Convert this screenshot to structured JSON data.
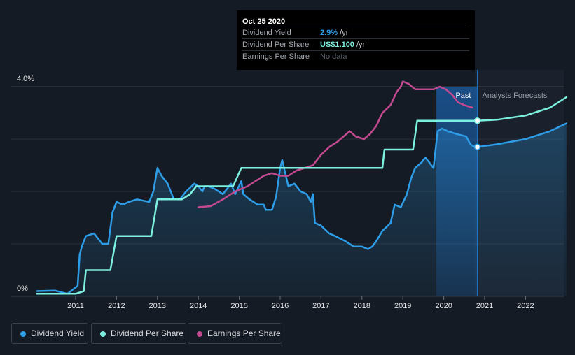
{
  "tooltip": {
    "date": "Oct 25 2020",
    "rows": [
      {
        "label": "Dividend Yield",
        "value": "2.9%",
        "unit": " /yr"
      },
      {
        "label": "Dividend Per Share",
        "value": "US$1.100",
        "unit": " /yr"
      },
      {
        "label": "Earnings Per Share",
        "value": "No data",
        "unit": ""
      }
    ]
  },
  "legend": [
    {
      "label": "Dividend Yield",
      "color": "#2e9de8"
    },
    {
      "label": "Dividend Per Share",
      "color": "#7cf0de"
    },
    {
      "label": "Earnings Per Share",
      "color": "#c2498f"
    }
  ],
  "chart_data": {
    "type": "line",
    "y_tick_labels": [
      "4.0%",
      "0%"
    ],
    "ylim": [
      0,
      4.0
    ],
    "xlim": [
      2010.0,
      2023.0
    ],
    "x_tick_labels": [
      "2011",
      "2012",
      "2013",
      "2014",
      "2015",
      "2016",
      "2017",
      "2018",
      "2019",
      "2020",
      "2021",
      "2022"
    ],
    "past_label": "Past",
    "forecast_label": "Analysts Forecasts",
    "forecast_start": 2020.82,
    "past_band_start": 2019.82,
    "grid": true,
    "colors": {
      "yield": "#2e9de8",
      "dps": "#7cf0de",
      "eps": "#c2498f"
    },
    "series": [
      {
        "name": "Dividend Yield",
        "key": "yield",
        "area": true,
        "x": [
          2010.05,
          2010.5,
          2010.8,
          2011.05,
          2011.1,
          2011.15,
          2011.25,
          2011.45,
          2011.65,
          2011.8,
          2011.9,
          2012.0,
          2012.15,
          2012.3,
          2012.5,
          2012.8,
          2012.9,
          2013.0,
          2013.1,
          2013.25,
          2013.4,
          2013.55,
          2013.7,
          2013.9,
          2014.0,
          2014.1,
          2014.15,
          2014.25,
          2014.4,
          2014.6,
          2014.8,
          2014.9,
          2015.05,
          2015.1,
          2015.25,
          2015.45,
          2015.6,
          2015.65,
          2015.8,
          2015.9,
          2016.0,
          2016.05,
          2016.2,
          2016.35,
          2016.5,
          2016.65,
          2016.75,
          2016.8,
          2016.85,
          2017.0,
          2017.2,
          2017.35,
          2017.6,
          2017.8,
          2018.0,
          2018.15,
          2018.25,
          2018.35,
          2018.5,
          2018.7,
          2018.8,
          2018.95,
          2019.1,
          2019.2,
          2019.3,
          2019.45,
          2019.55,
          2019.6,
          2019.75,
          2019.85,
          2019.95,
          2020.1,
          2020.3,
          2020.55,
          2020.65,
          2020.75,
          2020.82,
          2021.3,
          2022.0,
          2022.6,
          2023.0
        ],
        "y": [
          0.1,
          0.11,
          0.05,
          0.2,
          0.8,
          0.95,
          1.15,
          1.2,
          1.0,
          1.0,
          1.6,
          1.8,
          1.75,
          1.8,
          1.85,
          1.8,
          2.0,
          2.45,
          2.3,
          2.15,
          1.85,
          1.85,
          2.0,
          2.15,
          2.1,
          2.0,
          2.1,
          2.1,
          2.05,
          1.95,
          2.15,
          1.95,
          2.2,
          1.95,
          1.85,
          1.75,
          1.75,
          1.65,
          1.65,
          1.9,
          2.45,
          2.6,
          2.1,
          2.15,
          2.0,
          1.95,
          1.8,
          1.95,
          1.4,
          1.35,
          1.2,
          1.15,
          1.05,
          0.95,
          0.95,
          0.9,
          0.95,
          1.05,
          1.25,
          1.4,
          1.75,
          1.7,
          1.95,
          2.25,
          2.45,
          2.55,
          2.65,
          2.6,
          2.45,
          3.15,
          3.2,
          3.15,
          3.1,
          3.05,
          2.9,
          2.85,
          2.85,
          2.9,
          3.0,
          3.15,
          3.3
        ]
      },
      {
        "name": "Dividend Per Share",
        "key": "dps",
        "area": false,
        "x": [
          2010.05,
          2011.0,
          2011.2,
          2011.25,
          2011.85,
          2012.0,
          2012.85,
          2013.0,
          2013.6,
          2013.8,
          2013.95,
          2014.0,
          2014.85,
          2015.05,
          2016.0,
          2016.85,
          2017.05,
          2018.5,
          2018.55,
          2019.25,
          2019.35,
          2020.82,
          2021.3,
          2022.0,
          2022.6,
          2023.0
        ],
        "y": [
          0.05,
          0.05,
          0.1,
          0.5,
          0.5,
          1.15,
          1.15,
          1.85,
          1.85,
          1.95,
          2.1,
          2.1,
          2.1,
          2.45,
          2.45,
          2.45,
          2.45,
          2.45,
          2.8,
          2.8,
          3.35,
          3.35,
          3.37,
          3.45,
          3.6,
          3.8
        ]
      },
      {
        "name": "Earnings Per Share",
        "key": "eps",
        "area": false,
        "x": [
          2014.0,
          2014.3,
          2014.6,
          2014.9,
          2015.2,
          2015.4,
          2015.6,
          2015.8,
          2016.0,
          2016.2,
          2016.4,
          2016.6,
          2016.8,
          2017.0,
          2017.2,
          2017.4,
          2017.55,
          2017.7,
          2017.85,
          2018.05,
          2018.2,
          2018.35,
          2018.5,
          2018.7,
          2018.85,
          2018.95,
          2019.0,
          2019.15,
          2019.3,
          2019.6,
          2019.75,
          2019.9,
          2020.05,
          2020.2,
          2020.35,
          2020.5,
          2020.7
        ],
        "y": [
          1.7,
          1.72,
          1.85,
          2.0,
          2.1,
          2.2,
          2.3,
          2.35,
          2.3,
          2.3,
          2.4,
          2.45,
          2.5,
          2.7,
          2.85,
          2.95,
          3.05,
          3.15,
          3.05,
          3.0,
          3.1,
          3.25,
          3.5,
          3.65,
          3.9,
          4.0,
          4.1,
          4.05,
          3.95,
          3.95,
          3.95,
          4.0,
          3.95,
          3.85,
          3.7,
          3.65,
          3.6
        ]
      }
    ],
    "markers": [
      {
        "key": "dps",
        "x": 2020.82,
        "y": 3.35
      },
      {
        "key": "yield",
        "x": 2020.82,
        "y": 2.85
      }
    ]
  }
}
